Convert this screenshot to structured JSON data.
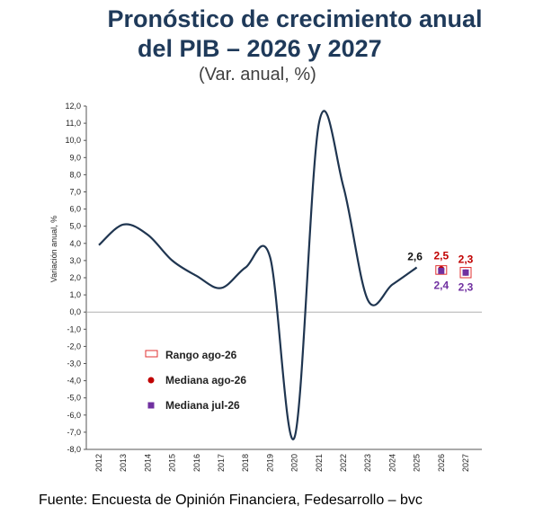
{
  "title_line1": "Pronóstico de crecimiento anual",
  "title_line2": "del PIB – 2026 y 2027",
  "subtitle": "(Var. anual, %)",
  "source": "Fuente: Encuesta de Opinión Financiera, Fedesarrollo – bvc",
  "colors": {
    "line": "#1f3550",
    "rango": "#e03030",
    "mediana_ago": "#c00000",
    "mediana_jul": "#7030a0",
    "zero": "#b0b0b0"
  },
  "chart_data": {
    "type": "line",
    "title": "Pronóstico de crecimiento anual del PIB – 2026 y 2027",
    "ylabel": "Variación anual, %",
    "xlabel": "",
    "ylim": [
      -8.0,
      12.0
    ],
    "ytick_step": 1.0,
    "ytick_labels": [
      "12,0",
      "11,0",
      "10,0",
      "9,0",
      "8,0",
      "7,0",
      "6,0",
      "5,0",
      "4,0",
      "3,0",
      "2,0",
      "1,0",
      "0,0",
      "-1,0",
      "-2,0",
      "-3,0",
      "-4,0",
      "-5,0",
      "-6,0",
      "-7,0",
      "-8,0"
    ],
    "categories": [
      "2012",
      "2013",
      "2014",
      "2015",
      "2016",
      "2017",
      "2018",
      "2019",
      "2020",
      "2021",
      "2022",
      "2023",
      "2024",
      "2025",
      "2026",
      "2027"
    ],
    "series": [
      {
        "kind": "line",
        "x": [
          "2012",
          "2013",
          "2014",
          "2015",
          "2016",
          "2017",
          "2018",
          "2019",
          "2020",
          "2021",
          "2022",
          "2023",
          "2024",
          "2025"
        ],
        "values": [
          3.9,
          5.1,
          4.5,
          3.0,
          2.1,
          1.4,
          2.6,
          3.2,
          -7.3,
          11.0,
          7.3,
          0.7,
          1.6,
          2.6
        ]
      },
      {
        "name": "Rango ago-26",
        "kind": "range",
        "x": [
          "2026",
          "2027"
        ],
        "low": [
          2.2,
          2.0
        ],
        "high": [
          2.7,
          2.6
        ]
      },
      {
        "name": "Mediana ago-26",
        "kind": "point",
        "x": [
          "2026",
          "2027"
        ],
        "values": [
          2.5,
          2.3
        ]
      },
      {
        "name": "Mediana jul-26",
        "kind": "point",
        "x": [
          "2026",
          "2027"
        ],
        "values": [
          2.4,
          2.3
        ]
      }
    ],
    "data_labels": [
      {
        "x": "2025",
        "text": "2,6",
        "series": "line"
      },
      {
        "x": "2026",
        "text": "2,5",
        "series": "Mediana ago-26"
      },
      {
        "x": "2027",
        "text": "2,3",
        "series": "Mediana ago-26"
      },
      {
        "x": "2026",
        "text": "2,4",
        "series": "Mediana jul-26"
      },
      {
        "x": "2027",
        "text": "2,3",
        "series": "Mediana jul-26"
      }
    ],
    "legend": [
      "Rango ago-26",
      "Mediana ago-26",
      "Mediana jul-26"
    ],
    "legend_position": "bottom-left",
    "grid": false
  }
}
